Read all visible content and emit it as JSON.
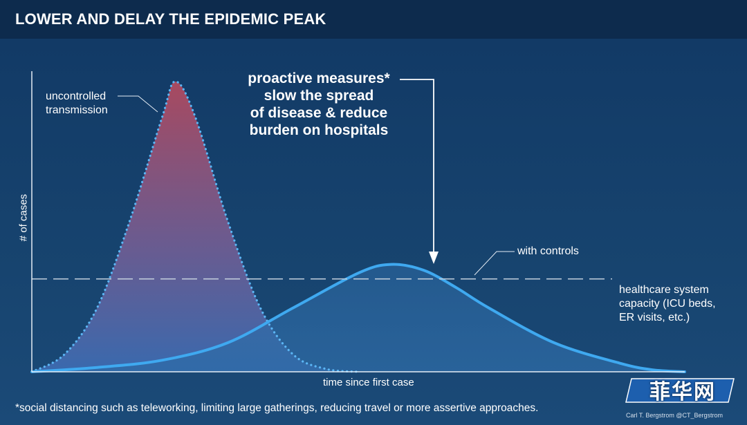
{
  "header": {
    "title": "LOWER AND DELAY THE EPIDEMIC PEAK"
  },
  "annotations": {
    "uncontrolled": [
      "uncontrolled",
      "transmission"
    ],
    "proactive": [
      "proactive measures*",
      "slow the spread",
      "of disease & reduce",
      "burden on hospitals"
    ],
    "with_controls": "with controls",
    "capacity": [
      "healthcare system",
      "capacity (ICU beds,",
      "ER visits, etc.)"
    ]
  },
  "footnote": "*social distancing such as teleworking, limiting large gatherings, reducing travel or more assertive approaches.",
  "credit": "Carl T. Bergstrom  @CT_Bergstrom",
  "watermark": {
    "text": "菲华网"
  },
  "colors": {
    "header_bg": "#0d2b4d",
    "background": "#17406e",
    "uncontrolled_top": "#b04a5f",
    "uncontrolled_bottom": "#3d6db4",
    "controls_line": "#3fa9f0",
    "capacity_line": "#c8d3df"
  },
  "chart_data": {
    "type": "area",
    "title": "LOWER AND DELAY THE EPIDEMIC PEAK",
    "xlabel": "time since first case",
    "ylabel": "# of cases",
    "xlim": [
      0,
      100
    ],
    "ylim": [
      0,
      100
    ],
    "grid": false,
    "legend": "none",
    "series": [
      {
        "name": "uncontrolled transmission",
        "style": "dotted line with gradient fill",
        "x": [
          0,
          5,
          10,
          15,
          20,
          22,
          25,
          30,
          35,
          40,
          45,
          50
        ],
        "y": [
          0,
          6,
          22,
          52,
          88,
          100,
          88,
          52,
          22,
          6,
          1,
          0
        ]
      },
      {
        "name": "with controls",
        "style": "solid line with filled area",
        "x": [
          0,
          10,
          20,
          30,
          40,
          50,
          55,
          60,
          65,
          70,
          80,
          90,
          95,
          100
        ],
        "y": [
          0,
          1.5,
          4,
          10,
          22,
          34,
          37,
          35,
          29,
          22,
          10,
          3,
          0.7,
          0
        ]
      }
    ],
    "reference_line": {
      "name": "healthcare system capacity",
      "y": 32,
      "style": "dashed"
    }
  }
}
